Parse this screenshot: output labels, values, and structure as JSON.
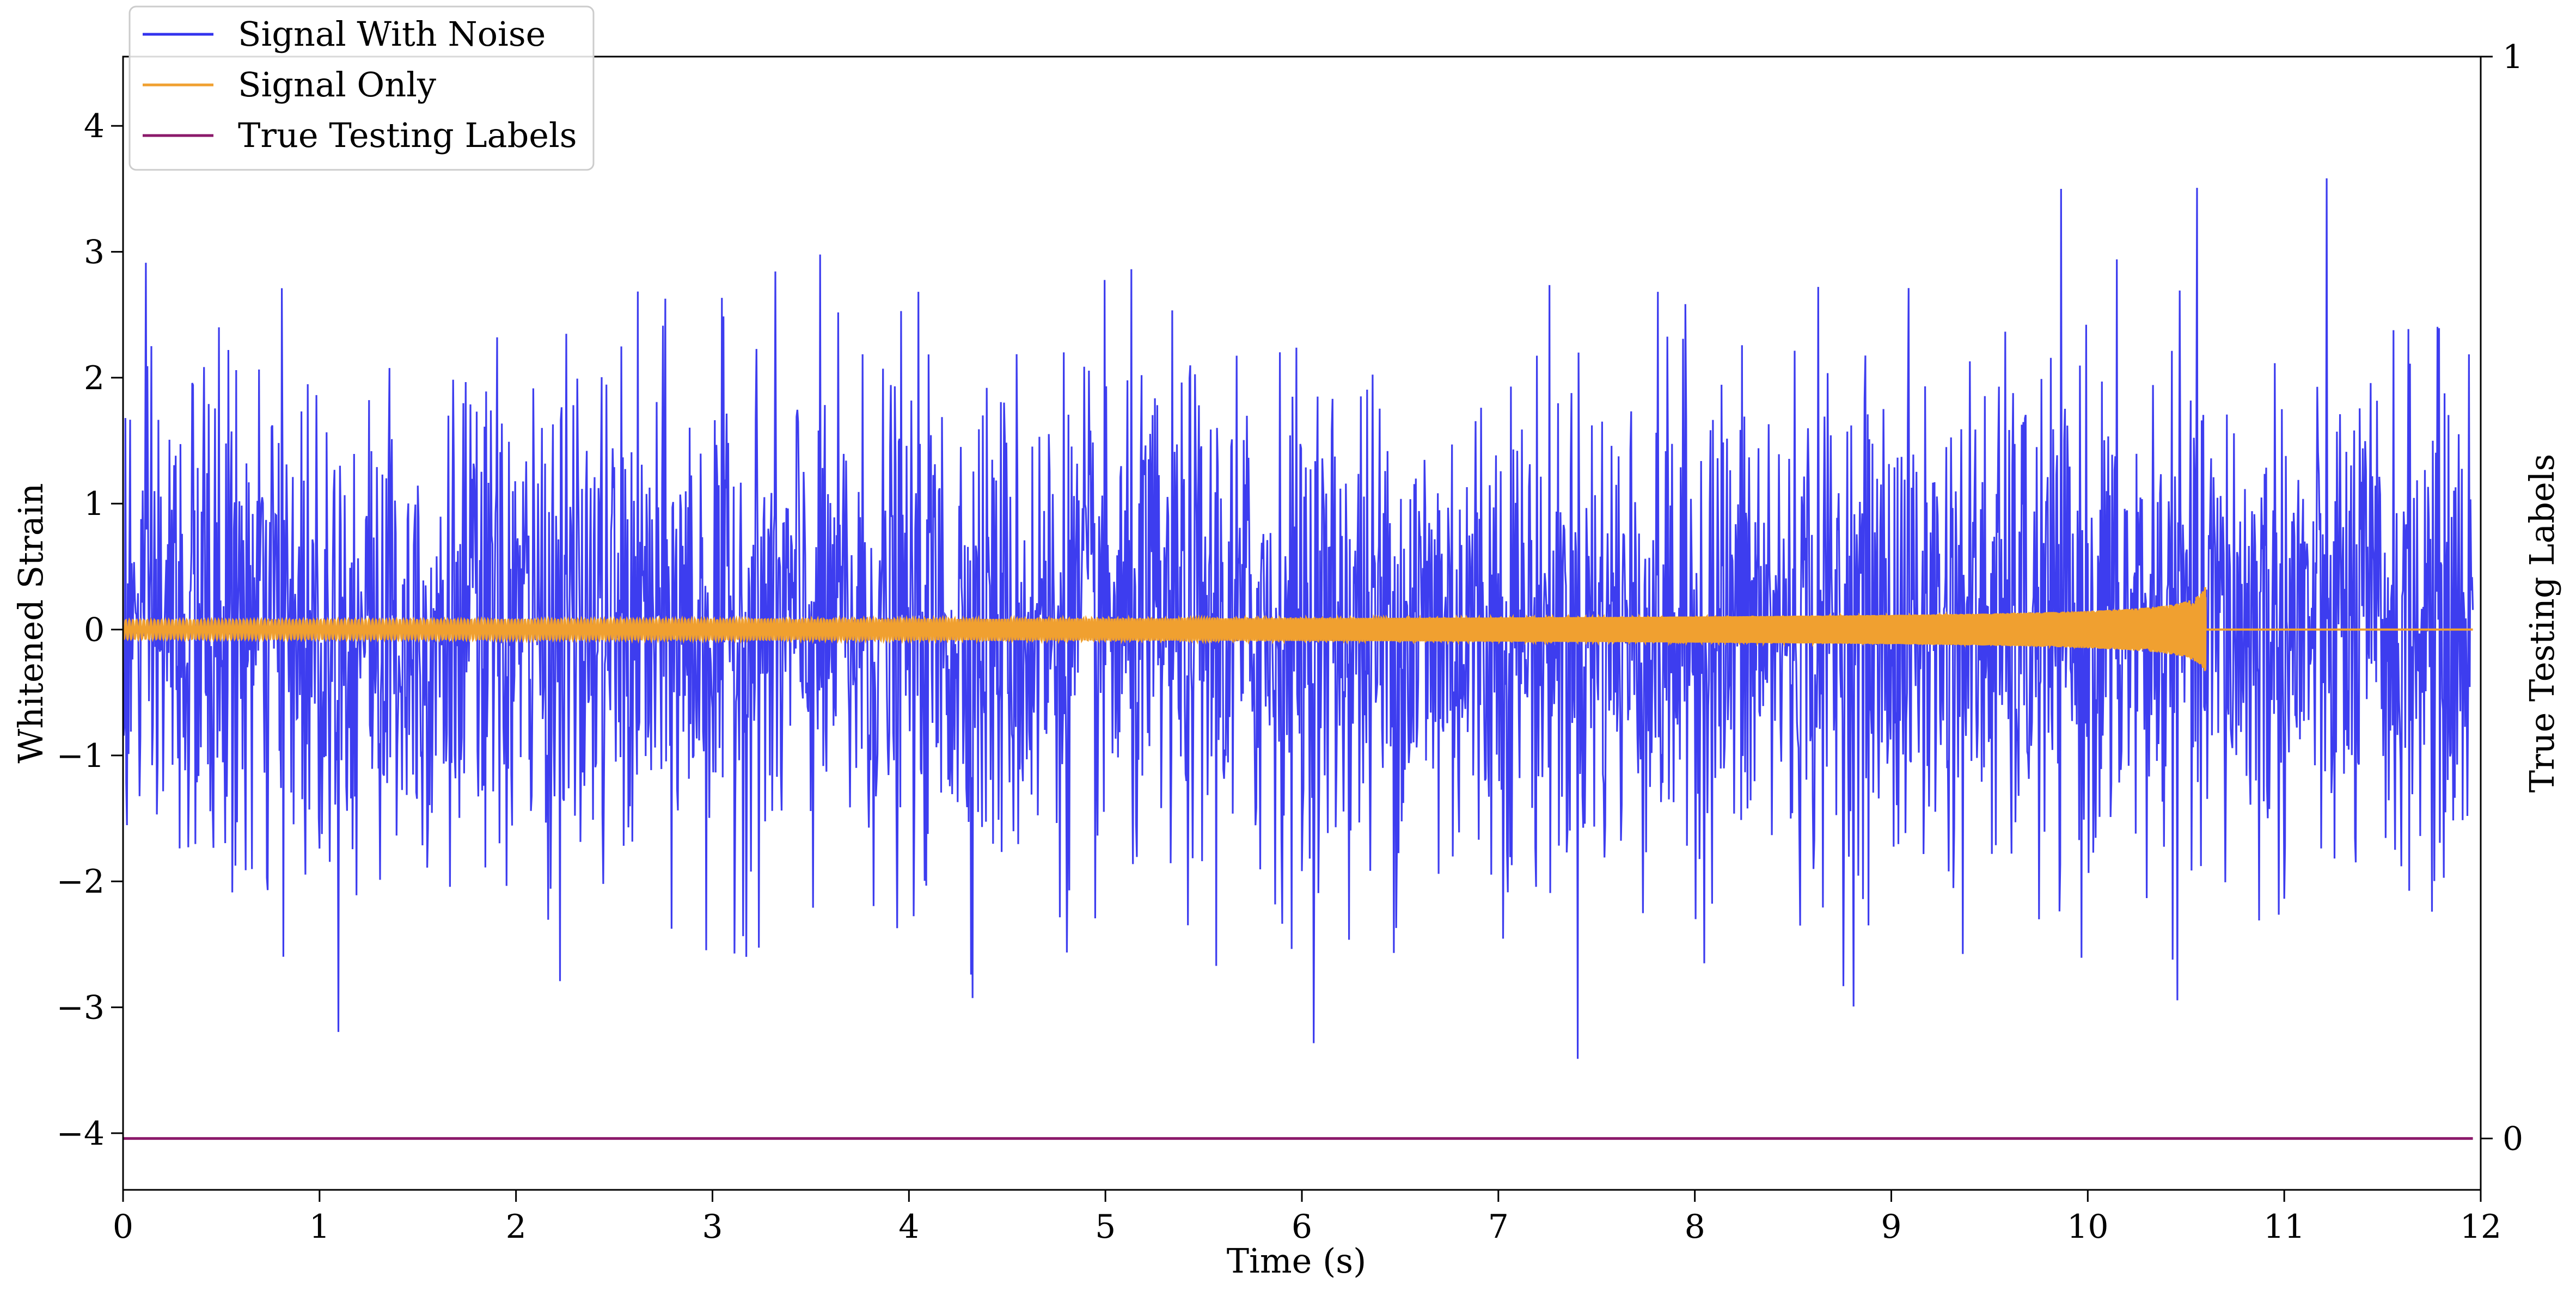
{
  "chart_data": {
    "type": "line",
    "title": "",
    "xlabel": "Time (s)",
    "ylabel": "Whitened Strain",
    "ylabel_right": "True Testing Labels",
    "xlim": [
      0,
      12
    ],
    "ylim": [
      -4.45,
      4.55
    ],
    "ylim_right": [
      -0.0475,
      1.0
    ],
    "x_ticks": [
      0,
      1,
      2,
      3,
      4,
      5,
      6,
      7,
      8,
      9,
      10,
      11,
      12
    ],
    "x_tick_labels": [
      "0",
      "1",
      "2",
      "3",
      "4",
      "5",
      "6",
      "7",
      "8",
      "9",
      "10",
      "11",
      "12"
    ],
    "y_ticks": [
      -4,
      -3,
      -2,
      -1,
      0,
      1,
      2,
      3,
      4
    ],
    "y_tick_labels": [
      "−4",
      "−3",
      "−2",
      "−1",
      "0",
      "1",
      "2",
      "3",
      "4"
    ],
    "y_right_ticks": [
      0,
      1
    ],
    "y_right_tick_labels": [
      "0",
      "1"
    ],
    "grid": false,
    "legend_position": "top-left",
    "sample_interval": 0.004,
    "series": [
      {
        "name": "Signal With Noise",
        "color": "#3333ee",
        "description": "Gaussian whitened noise, approx. unit variance, peaks roughly between -3.9 and 4.2",
        "noise_std": 1.0,
        "x_range": [
          0,
          11.96
        ]
      },
      {
        "name": "Signal Only",
        "color": "#f0a030",
        "description": "chirp that grows in amplitude and frequency, merging near t=10.6 s then flat at 0",
        "merger_time": 10.6,
        "peak_amplitude": 0.35,
        "x_range": [
          0,
          11.96
        ]
      },
      {
        "name": "True Testing Labels",
        "color": "#8b1a6b",
        "axis": "right",
        "x": [
          0,
          11.96
        ],
        "values": [
          0,
          0
        ]
      }
    ]
  }
}
